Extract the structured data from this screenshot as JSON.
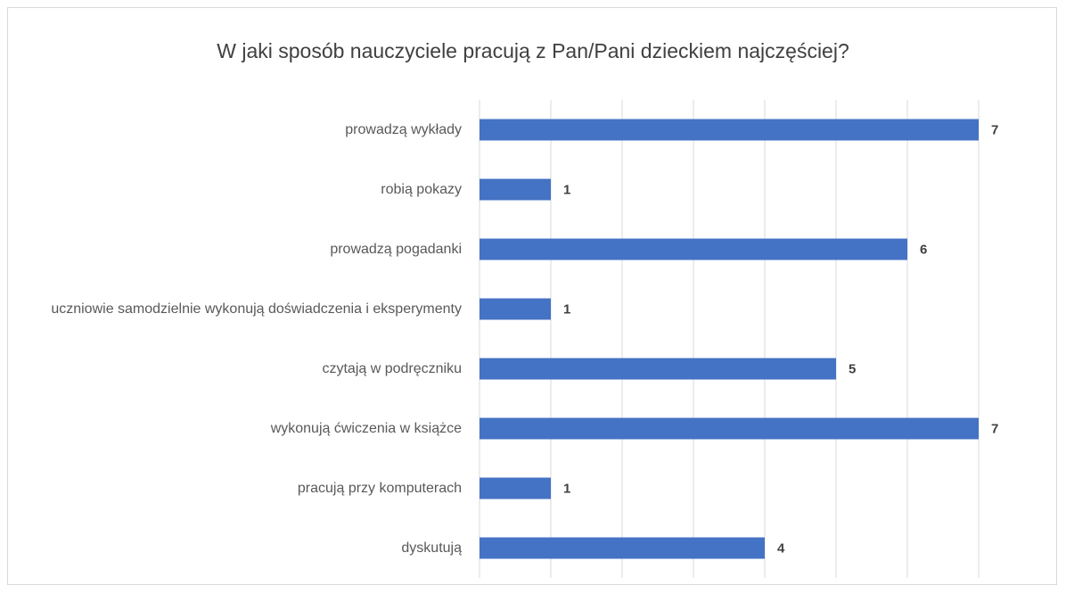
{
  "chart_data": {
    "type": "bar",
    "orientation": "horizontal",
    "title": "W jaki sposób nauczyciele pracują z Pan/Pani dzieckiem najczęściej?",
    "categories": [
      "prowadzą wykłady",
      "robią pokazy",
      "prowadzą pogadanki",
      "uczniowie samodzielnie wykonują doświadczenia i eksperymenty",
      "czytają w podręczniku",
      "wykonują ćwiczenia w książce",
      "pracują przy komputerach",
      "dyskutują"
    ],
    "values": [
      7,
      1,
      6,
      1,
      5,
      7,
      1,
      4
    ],
    "color": "#4472c4",
    "xlim": [
      0,
      7
    ],
    "xticks": [
      0,
      1,
      2,
      3,
      4,
      5,
      6,
      7
    ],
    "grid": true
  }
}
